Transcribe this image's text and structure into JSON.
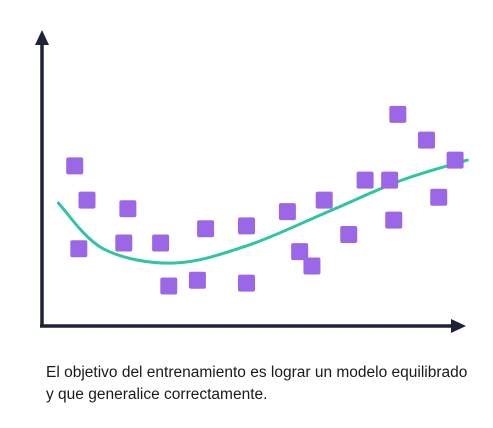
{
  "caption": "El objetivo del entrenamiento es lograr un modelo equilibrado y que generalice correctamente.",
  "chart_data": {
    "type": "scatter",
    "title": "",
    "xlabel": "",
    "ylabel": "",
    "xlim": [
      0,
      100
    ],
    "ylim": [
      0,
      100
    ],
    "grid": false,
    "legend": "none",
    "colors": {
      "points": "#9c67e6",
      "fit_line": "#2ec4a4",
      "axes": "#1d2433"
    },
    "points": [
      {
        "x": 8,
        "y": 56
      },
      {
        "x": 11,
        "y": 44
      },
      {
        "x": 9,
        "y": 27
      },
      {
        "x": 21,
        "y": 41
      },
      {
        "x": 20,
        "y": 29
      },
      {
        "x": 29,
        "y": 29
      },
      {
        "x": 31,
        "y": 14
      },
      {
        "x": 38,
        "y": 16
      },
      {
        "x": 40,
        "y": 34
      },
      {
        "x": 50,
        "y": 35
      },
      {
        "x": 50,
        "y": 15
      },
      {
        "x": 60,
        "y": 40
      },
      {
        "x": 63,
        "y": 26
      },
      {
        "x": 66,
        "y": 21
      },
      {
        "x": 69,
        "y": 44
      },
      {
        "x": 75,
        "y": 32
      },
      {
        "x": 79,
        "y": 51
      },
      {
        "x": 85,
        "y": 51
      },
      {
        "x": 86,
        "y": 37
      },
      {
        "x": 87,
        "y": 74
      },
      {
        "x": 94,
        "y": 65
      },
      {
        "x": 97,
        "y": 45
      },
      {
        "x": 101,
        "y": 58
      }
    ],
    "fit_line": [
      {
        "x": 4,
        "y": 43
      },
      {
        "x": 15,
        "y": 27
      },
      {
        "x": 32,
        "y": 22
      },
      {
        "x": 50,
        "y": 28
      },
      {
        "x": 70,
        "y": 40
      },
      {
        "x": 88,
        "y": 51
      },
      {
        "x": 104,
        "y": 58
      }
    ]
  }
}
